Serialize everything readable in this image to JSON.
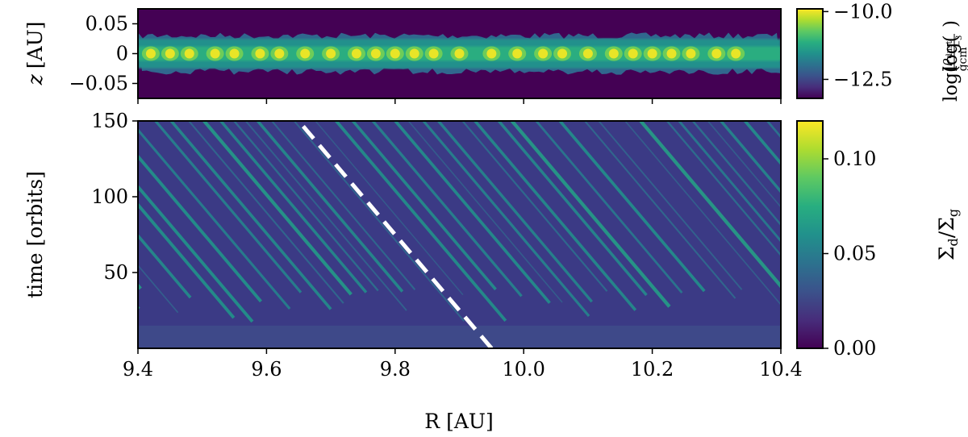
{
  "chart_data": [
    {
      "type": "heatmap",
      "panel": "top",
      "ylabel": "z [AU]",
      "ylabel_italic_symbol": "z",
      "ylabel_unit": "[AU]",
      "xlim": [
        9.4,
        10.4
      ],
      "ylim": [
        -0.075,
        0.075
      ],
      "yticks": [
        0.05,
        0,
        -0.05
      ],
      "ytick_labels": [
        "0.05",
        "0",
        "−0.05"
      ],
      "colorbar": {
        "label_prefix": "log(",
        "label_num": "ρ",
        "label_num_sub": "dust",
        "label_den": "gcm",
        "label_den_sup": "−3",
        "label_suffix": ")",
        "range": [
          -13.2,
          -9.9
        ],
        "ticks": [
          -10.0,
          -12.5
        ],
        "tick_labels": [
          "−10.0",
          "−12.5"
        ]
      },
      "features": {
        "dust_layer_half_thickness_au": 0.03,
        "dense_clump_R_au": [
          9.42,
          9.45,
          9.48,
          9.52,
          9.55,
          9.59,
          9.62,
          9.66,
          9.7,
          9.74,
          9.77,
          9.8,
          9.83,
          9.86,
          9.9,
          9.95,
          9.99,
          10.03,
          10.06,
          10.1,
          10.14,
          10.17,
          10.2,
          10.23,
          10.26,
          10.3,
          10.33
        ]
      }
    },
    {
      "type": "heatmap",
      "panel": "bottom",
      "xlabel": "R [AU]",
      "ylabel": "time [orbits]",
      "xlim": [
        9.4,
        10.4
      ],
      "ylim": [
        0,
        150
      ],
      "xticks": [
        9.4,
        9.6,
        9.8,
        10.0,
        10.2,
        10.4
      ],
      "xtick_labels": [
        "9.4",
        "9.6",
        "9.8",
        "10.0",
        "10.2",
        "10.4"
      ],
      "yticks": [
        50,
        100,
        150
      ],
      "ytick_labels": [
        "50",
        "100",
        "150"
      ],
      "colorbar": {
        "label_num": "Σ",
        "label_num_sub": "d",
        "label_slash": "/",
        "label_den": "Σ",
        "label_den_sub": "g",
        "range": [
          0,
          0.12
        ],
        "ticks": [
          0.0,
          0.05,
          0.1
        ],
        "tick_labels": [
          "0.00",
          "0.05",
          "0.10"
        ]
      },
      "dashed_line": {
        "color": "#ffffff",
        "points": [
          [
            9.95,
            0
          ],
          [
            9.65,
            150
          ]
        ]
      },
      "features": {
        "stripe_slope_R_per_orbit": -0.002,
        "stripe_spacing_au": 0.03,
        "stripes_emerge_after_orbits": 15
      }
    }
  ]
}
